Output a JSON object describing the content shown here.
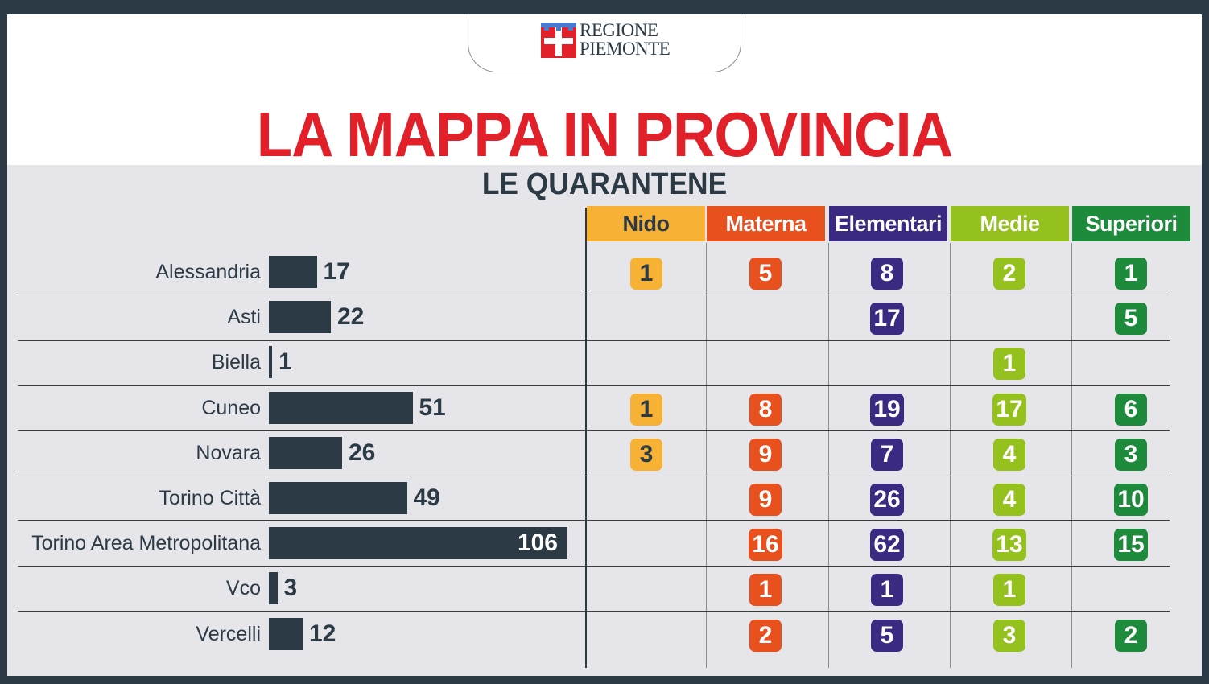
{
  "logo": {
    "text": "REGIONE\nPIEMONTE"
  },
  "header": {
    "title": "LA MAPPA IN PROVINCIA",
    "subtitle": "LE QUARANTENE"
  },
  "colors": {
    "background": "#2b3a45",
    "panel": "#e6e6ea",
    "title_red": "#e2202a",
    "bar": "#2b3a45",
    "nido": "#f7b134",
    "materna": "#e8501e",
    "elementari": "#3b2a82",
    "medie": "#95c11f",
    "superiori": "#1d8a3c"
  },
  "chart_data": [
    {
      "type": "bar",
      "orientation": "horizontal",
      "categories": [
        "Alessandria",
        "Asti",
        "Biella",
        "Cuneo",
        "Novara",
        "Torino Città",
        "Torino Area Metropolitana",
        "Vco",
        "Vercelli"
      ],
      "values": [
        17,
        22,
        1,
        51,
        26,
        49,
        106,
        3,
        12
      ],
      "title": "LE QUARANTENE",
      "xlabel": "",
      "ylabel": "",
      "grid": false
    },
    {
      "type": "table",
      "columns": [
        "Nido",
        "Materna",
        "Elementari",
        "Medie",
        "Superiori"
      ],
      "rows": [
        {
          "label": "Alessandria",
          "values": [
            1,
            5,
            8,
            2,
            1
          ]
        },
        {
          "label": "Asti",
          "values": [
            null,
            null,
            17,
            null,
            5
          ]
        },
        {
          "label": "Biella",
          "values": [
            null,
            null,
            null,
            1,
            null
          ]
        },
        {
          "label": "Cuneo",
          "values": [
            1,
            8,
            19,
            17,
            6
          ]
        },
        {
          "label": "Novara",
          "values": [
            3,
            9,
            7,
            4,
            3
          ]
        },
        {
          "label": "Torino Città",
          "values": [
            null,
            9,
            26,
            4,
            10
          ]
        },
        {
          "label": "Torino Area Metropolitana",
          "values": [
            null,
            16,
            62,
            13,
            15
          ]
        },
        {
          "label": "Vco",
          "values": [
            null,
            1,
            1,
            1,
            null
          ]
        },
        {
          "label": "Vercelli",
          "values": [
            null,
            2,
            5,
            3,
            2
          ]
        }
      ]
    }
  ]
}
